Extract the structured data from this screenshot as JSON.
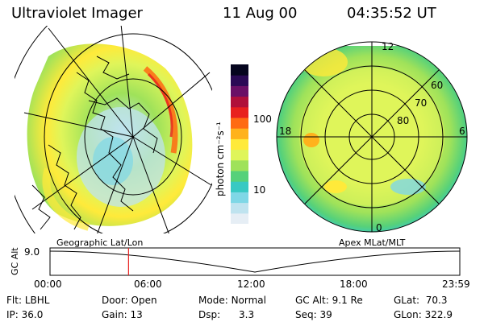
{
  "header": {
    "title": "Ultraviolet Imager",
    "date": "11 Aug 00",
    "time": "04:35:52 UT"
  },
  "colorbar": {
    "unit_label": "photon cm⁻²s⁻¹",
    "ticks": [
      "100",
      "10"
    ],
    "colors": [
      "#e6eef5",
      "#bfe3ef",
      "#7fd7e6",
      "#38c9c3",
      "#56d17a",
      "#9fe25a",
      "#dff55a",
      "#ffea3a",
      "#ffb21c",
      "#ff6a12",
      "#e8201e",
      "#b0103a",
      "#6a1066",
      "#2a0a55",
      "#05051e"
    ]
  },
  "left_map": {
    "caption": "Geographic Lat/Lon"
  },
  "right_map": {
    "caption": "Apex MLat/MLT",
    "mlt_labels": {
      "top": "12",
      "left": "18",
      "right": "6",
      "bottom": "0"
    },
    "lat_labels": [
      "60",
      "70",
      "80"
    ]
  },
  "altitude_plot": {
    "ylabel": "GC Alt",
    "ytick": "9.0",
    "xticks": [
      "00:00",
      "06:00",
      "12:00",
      "18:00",
      "23:59"
    ],
    "marker_hour": 4.6,
    "marker_color": "#e8201e"
  },
  "status": {
    "flt_label": "Flt:",
    "flt_value": "LBHL",
    "ip_label": "IP:",
    "ip_value": "36.0",
    "door_label": "Door:",
    "door_value": "Open",
    "gain_label": "Gain:",
    "gain_value": "13",
    "mode_label": "Mode:",
    "mode_value": "Normal",
    "dsp_label": "Dsp:",
    "dsp_value": "3.3",
    "gcalt_label": "GC Alt:",
    "gcalt_value": "9.1 Re",
    "seq_label": "Seq:",
    "seq_value": "39",
    "glat_label": "GLat:",
    "glat_value": "70.3",
    "glon_label": "GLon:",
    "glon_value": "322.9"
  }
}
